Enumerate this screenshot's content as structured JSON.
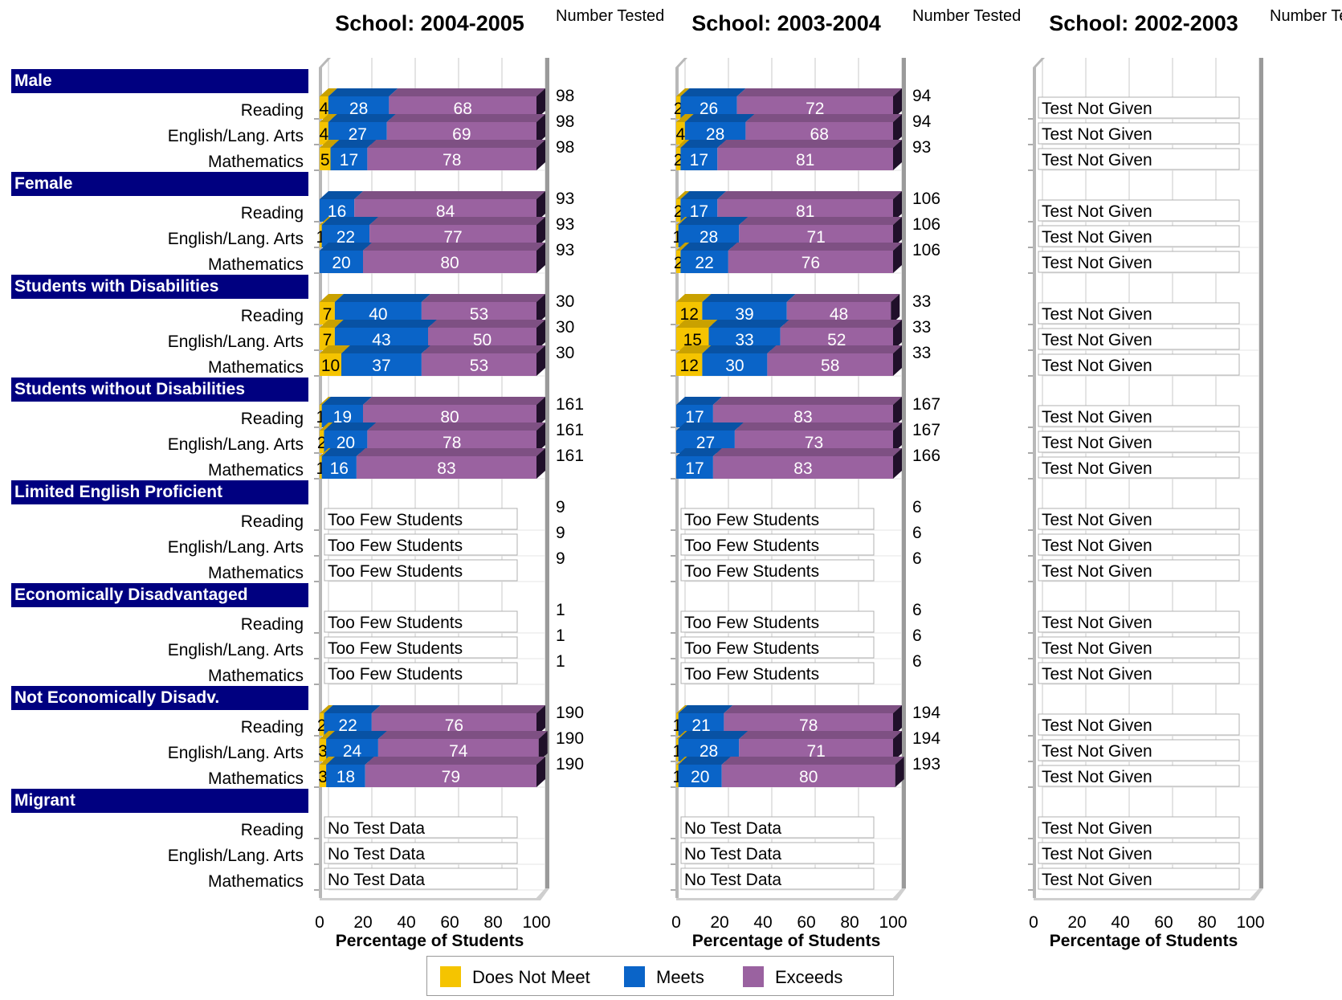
{
  "colors": {
    "does_not_meet": "#f5c400",
    "meets": "#0a64c8",
    "exceeds": "#9a62a0",
    "group_header_bg": "#000080"
  },
  "legend": [
    {
      "key": "does_not_meet",
      "label": "Does Not Meet"
    },
    {
      "key": "meets",
      "label": "Meets"
    },
    {
      "key": "exceeds",
      "label": "Exceeds"
    }
  ],
  "groups": [
    "Male",
    "Female",
    "Students with Disabilities",
    "Students without Disabilities",
    "Limited English Proficient",
    "Economically Disadvantaged",
    "Not Economically Disadv.",
    "Migrant"
  ],
  "subjects": [
    "Reading",
    "English/Lang. Arts",
    "Mathematics"
  ],
  "number_tested_header": "Number Tested",
  "chart_data": [
    {
      "type": "bar",
      "stacked": true,
      "orientation": "horizontal",
      "title": "School: 2004-2005",
      "xlabel": "Percentage of Students",
      "xlim": [
        0,
        100
      ],
      "xticks": [
        "0",
        "20",
        "40",
        "60",
        "80",
        "100"
      ],
      "rows": [
        {
          "group": "Male",
          "subject": "Reading",
          "values": [
            4,
            28,
            68
          ],
          "tested": "98"
        },
        {
          "group": "Male",
          "subject": "English/Lang. Arts",
          "values": [
            4,
            27,
            69
          ],
          "tested": "98"
        },
        {
          "group": "Male",
          "subject": "Mathematics",
          "values": [
            5,
            17,
            78
          ],
          "tested": "98"
        },
        {
          "group": "Female",
          "subject": "Reading",
          "values": [
            0,
            16,
            84
          ],
          "tested": "93"
        },
        {
          "group": "Female",
          "subject": "English/Lang. Arts",
          "values": [
            1,
            22,
            77
          ],
          "tested": "93"
        },
        {
          "group": "Female",
          "subject": "Mathematics",
          "values": [
            0,
            20,
            80
          ],
          "tested": "93"
        },
        {
          "group": "Students with Disabilities",
          "subject": "Reading",
          "values": [
            7,
            40,
            53
          ],
          "tested": "30"
        },
        {
          "group": "Students with Disabilities",
          "subject": "English/Lang. Arts",
          "values": [
            7,
            43,
            50
          ],
          "tested": "30"
        },
        {
          "group": "Students with Disabilities",
          "subject": "Mathematics",
          "values": [
            10,
            37,
            53
          ],
          "tested": "30"
        },
        {
          "group": "Students without Disabilities",
          "subject": "Reading",
          "values": [
            1,
            19,
            80
          ],
          "tested": "161"
        },
        {
          "group": "Students without Disabilities",
          "subject": "English/Lang. Arts",
          "values": [
            2,
            20,
            78
          ],
          "tested": "161"
        },
        {
          "group": "Students without Disabilities",
          "subject": "Mathematics",
          "values": [
            1,
            16,
            83
          ],
          "tested": "161"
        },
        {
          "group": "Limited English Proficient",
          "subject": "Reading",
          "note": "Too Few Students",
          "tested": "9"
        },
        {
          "group": "Limited English Proficient",
          "subject": "English/Lang. Arts",
          "note": "Too Few Students",
          "tested": "9"
        },
        {
          "group": "Limited English Proficient",
          "subject": "Mathematics",
          "note": "Too Few Students",
          "tested": "9"
        },
        {
          "group": "Economically Disadvantaged",
          "subject": "Reading",
          "note": "Too Few Students",
          "tested": "1"
        },
        {
          "group": "Economically Disadvantaged",
          "subject": "English/Lang. Arts",
          "note": "Too Few Students",
          "tested": "1"
        },
        {
          "group": "Economically Disadvantaged",
          "subject": "Mathematics",
          "note": "Too Few Students",
          "tested": "1"
        },
        {
          "group": "Not Economically Disadv.",
          "subject": "Reading",
          "values": [
            2,
            22,
            76
          ],
          "tested": "190"
        },
        {
          "group": "Not Economically Disadv.",
          "subject": "English/Lang. Arts",
          "values": [
            3,
            24,
            74
          ],
          "tested": "190"
        },
        {
          "group": "Not Economically Disadv.",
          "subject": "Mathematics",
          "values": [
            3,
            18,
            79
          ],
          "tested": "190"
        },
        {
          "group": "Migrant",
          "subject": "Reading",
          "note": "No Test Data",
          "tested": ""
        },
        {
          "group": "Migrant",
          "subject": "English/Lang. Arts",
          "note": "No Test Data",
          "tested": ""
        },
        {
          "group": "Migrant",
          "subject": "Mathematics",
          "note": "No Test Data",
          "tested": ""
        }
      ]
    },
    {
      "type": "bar",
      "stacked": true,
      "orientation": "horizontal",
      "title": "School: 2003-2004",
      "xlabel": "Percentage of Students",
      "xlim": [
        0,
        100
      ],
      "xticks": [
        "0",
        "20",
        "40",
        "60",
        "80",
        "100"
      ],
      "rows": [
        {
          "group": "Male",
          "subject": "Reading",
          "values": [
            2,
            26,
            72
          ],
          "tested": "94"
        },
        {
          "group": "Male",
          "subject": "English/Lang. Arts",
          "values": [
            4,
            28,
            68
          ],
          "tested": "94"
        },
        {
          "group": "Male",
          "subject": "Mathematics",
          "values": [
            2,
            17,
            81
          ],
          "tested": "93"
        },
        {
          "group": "Female",
          "subject": "Reading",
          "values": [
            2,
            17,
            81
          ],
          "tested": "106"
        },
        {
          "group": "Female",
          "subject": "English/Lang. Arts",
          "values": [
            1,
            28,
            71
          ],
          "tested": "106"
        },
        {
          "group": "Female",
          "subject": "Mathematics",
          "values": [
            2,
            22,
            76
          ],
          "tested": "106"
        },
        {
          "group": "Students with Disabilities",
          "subject": "Reading",
          "values": [
            12,
            39,
            48
          ],
          "tested": "33"
        },
        {
          "group": "Students with Disabilities",
          "subject": "English/Lang. Arts",
          "values": [
            15,
            33,
            52
          ],
          "tested": "33"
        },
        {
          "group": "Students with Disabilities",
          "subject": "Mathematics",
          "values": [
            12,
            30,
            58
          ],
          "tested": "33"
        },
        {
          "group": "Students without Disabilities",
          "subject": "Reading",
          "values": [
            0,
            17,
            83
          ],
          "tested": "167"
        },
        {
          "group": "Students without Disabilities",
          "subject": "English/Lang. Arts",
          "values": [
            0,
            27,
            73
          ],
          "tested": "167"
        },
        {
          "group": "Students without Disabilities",
          "subject": "Mathematics",
          "values": [
            0,
            17,
            83
          ],
          "tested": "166"
        },
        {
          "group": "Limited English Proficient",
          "subject": "Reading",
          "note": "Too Few Students",
          "tested": "6"
        },
        {
          "group": "Limited English Proficient",
          "subject": "English/Lang. Arts",
          "note": "Too Few Students",
          "tested": "6"
        },
        {
          "group": "Limited English Proficient",
          "subject": "Mathematics",
          "note": "Too Few Students",
          "tested": "6"
        },
        {
          "group": "Economically Disadvantaged",
          "subject": "Reading",
          "note": "Too Few Students",
          "tested": "6"
        },
        {
          "group": "Economically Disadvantaged",
          "subject": "English/Lang. Arts",
          "note": "Too Few Students",
          "tested": "6"
        },
        {
          "group": "Economically Disadvantaged",
          "subject": "Mathematics",
          "note": "Too Few Students",
          "tested": "6"
        },
        {
          "group": "Not Economically Disadv.",
          "subject": "Reading",
          "values": [
            1,
            21,
            78
          ],
          "tested": "194"
        },
        {
          "group": "Not Economically Disadv.",
          "subject": "English/Lang. Arts",
          "values": [
            1,
            28,
            71
          ],
          "tested": "194"
        },
        {
          "group": "Not Economically Disadv.",
          "subject": "Mathematics",
          "values": [
            1,
            20,
            80
          ],
          "tested": "193"
        },
        {
          "group": "Migrant",
          "subject": "Reading",
          "note": "No Test Data",
          "tested": ""
        },
        {
          "group": "Migrant",
          "subject": "English/Lang. Arts",
          "note": "No Test Data",
          "tested": ""
        },
        {
          "group": "Migrant",
          "subject": "Mathematics",
          "note": "No Test Data",
          "tested": ""
        }
      ]
    },
    {
      "type": "bar",
      "stacked": true,
      "orientation": "horizontal",
      "title": "School: 2002-2003",
      "xlabel": "Percentage of Students",
      "xlim": [
        0,
        100
      ],
      "xticks": [
        "0",
        "20",
        "40",
        "60",
        "80",
        "100"
      ],
      "rows": [
        {
          "group": "Male",
          "subject": "Reading",
          "note": "Test Not Given",
          "tested": ""
        },
        {
          "group": "Male",
          "subject": "English/Lang. Arts",
          "note": "Test Not Given",
          "tested": ""
        },
        {
          "group": "Male",
          "subject": "Mathematics",
          "note": "Test Not Given",
          "tested": ""
        },
        {
          "group": "Female",
          "subject": "Reading",
          "note": "Test Not Given",
          "tested": ""
        },
        {
          "group": "Female",
          "subject": "English/Lang. Arts",
          "note": "Test Not Given",
          "tested": ""
        },
        {
          "group": "Female",
          "subject": "Mathematics",
          "note": "Test Not Given",
          "tested": ""
        },
        {
          "group": "Students with Disabilities",
          "subject": "Reading",
          "note": "Test Not Given",
          "tested": ""
        },
        {
          "group": "Students with Disabilities",
          "subject": "English/Lang. Arts",
          "note": "Test Not Given",
          "tested": ""
        },
        {
          "group": "Students with Disabilities",
          "subject": "Mathematics",
          "note": "Test Not Given",
          "tested": ""
        },
        {
          "group": "Students without Disabilities",
          "subject": "Reading",
          "note": "Test Not Given",
          "tested": ""
        },
        {
          "group": "Students without Disabilities",
          "subject": "English/Lang. Arts",
          "note": "Test Not Given",
          "tested": ""
        },
        {
          "group": "Students without Disabilities",
          "subject": "Mathematics",
          "note": "Test Not Given",
          "tested": ""
        },
        {
          "group": "Limited English Proficient",
          "subject": "Reading",
          "note": "Test Not Given",
          "tested": ""
        },
        {
          "group": "Limited English Proficient",
          "subject": "English/Lang. Arts",
          "note": "Test Not Given",
          "tested": ""
        },
        {
          "group": "Limited English Proficient",
          "subject": "Mathematics",
          "note": "Test Not Given",
          "tested": ""
        },
        {
          "group": "Economically Disadvantaged",
          "subject": "Reading",
          "note": "Test Not Given",
          "tested": ""
        },
        {
          "group": "Economically Disadvantaged",
          "subject": "English/Lang. Arts",
          "note": "Test Not Given",
          "tested": ""
        },
        {
          "group": "Economically Disadvantaged",
          "subject": "Mathematics",
          "note": "Test Not Given",
          "tested": ""
        },
        {
          "group": "Not Economically Disadv.",
          "subject": "Reading",
          "note": "Test Not Given",
          "tested": ""
        },
        {
          "group": "Not Economically Disadv.",
          "subject": "English/Lang. Arts",
          "note": "Test Not Given",
          "tested": ""
        },
        {
          "group": "Not Economically Disadv.",
          "subject": "Mathematics",
          "note": "Test Not Given",
          "tested": ""
        },
        {
          "group": "Migrant",
          "subject": "Reading",
          "note": "Test Not Given",
          "tested": ""
        },
        {
          "group": "Migrant",
          "subject": "English/Lang. Arts",
          "note": "Test Not Given",
          "tested": ""
        },
        {
          "group": "Migrant",
          "subject": "Mathematics",
          "note": "Test Not Given",
          "tested": ""
        }
      ]
    }
  ]
}
